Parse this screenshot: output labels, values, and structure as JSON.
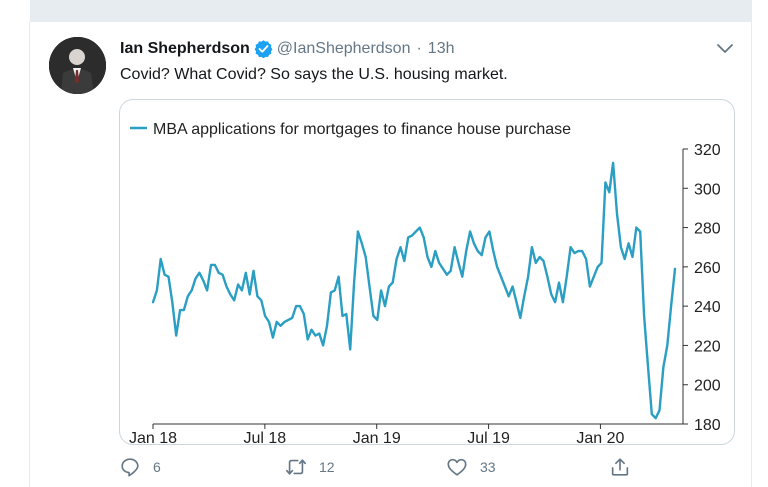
{
  "tweet": {
    "author_name": "Ian Shepherdson",
    "handle": "@IanShepherdson",
    "separator": "·",
    "time": "13h",
    "text": "Covid? What Covid? So says the U.S. housing market.",
    "verified_color": "#1da1f2"
  },
  "actions": {
    "reply_count": "6",
    "retweet_count": "12",
    "like_count": "33"
  },
  "chart_data": {
    "type": "line",
    "title": "MBA applications for mortgages to finance house purchase",
    "color": "#2a9ec3",
    "ylim": [
      180,
      320
    ],
    "yticks": [
      "320",
      "300",
      "280",
      "260",
      "240",
      "220",
      "200",
      "180"
    ],
    "xticks": [
      "Jan 18",
      "Jul 18",
      "Jan 19",
      "Jul 19",
      "Jan 20"
    ],
    "x_range": [
      "2018-01",
      "2020-05"
    ],
    "y_axis_position": "right",
    "series": [
      {
        "values": [
          242,
          248,
          264,
          256,
          255,
          242,
          225,
          238,
          238,
          245,
          248,
          254,
          257,
          253,
          248,
          261,
          261,
          257,
          256,
          250,
          246,
          243,
          251,
          248,
          257,
          246,
          258,
          245,
          243,
          235,
          232,
          224,
          232,
          230,
          232,
          233,
          234,
          240,
          240,
          236,
          223,
          228,
          225,
          226,
          220,
          230,
          247,
          248,
          255,
          235,
          236,
          218,
          252,
          278,
          272,
          265,
          250,
          235,
          233,
          248,
          240,
          250,
          252,
          264,
          270,
          263,
          275,
          276,
          278,
          280,
          275,
          265,
          260,
          268,
          262,
          259,
          256,
          258,
          270,
          262,
          255,
          268,
          278,
          272,
          268,
          266,
          275,
          278,
          268,
          260,
          255,
          250,
          245,
          250,
          242,
          234,
          245,
          255,
          270,
          262,
          265,
          263,
          255,
          246,
          242,
          252,
          242,
          255,
          270,
          267,
          268,
          268,
          264,
          250,
          255,
          260,
          262,
          303,
          298,
          313,
          287,
          270,
          264,
          272,
          265,
          280,
          278,
          235,
          210,
          185,
          183,
          187,
          209,
          220,
          240,
          259
        ]
      }
    ]
  }
}
